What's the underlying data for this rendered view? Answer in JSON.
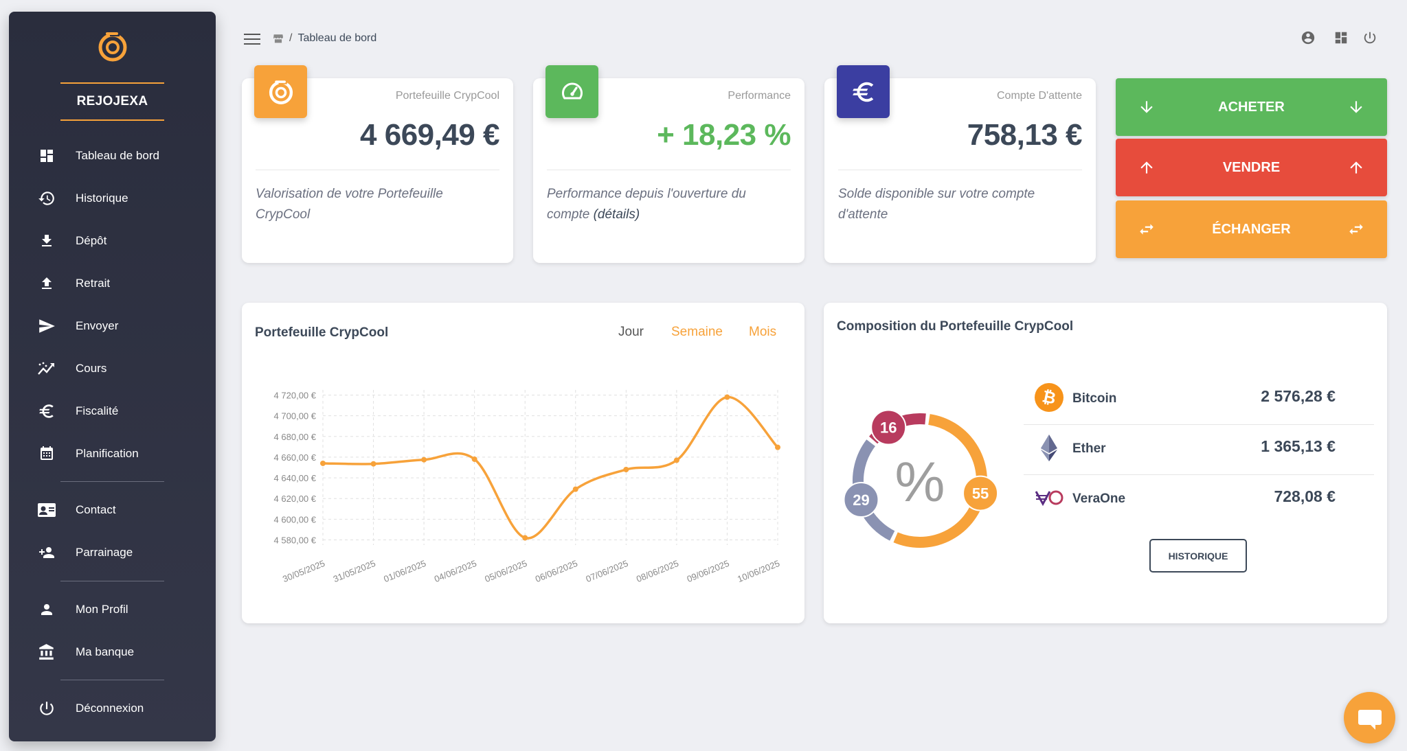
{
  "sidebar": {
    "brand": "REJOJEXA",
    "items": [
      {
        "label": "Tableau de bord",
        "icon": "dashboard-icon"
      },
      {
        "label": "Historique",
        "icon": "history-icon"
      },
      {
        "label": "Dépôt",
        "icon": "download-icon"
      },
      {
        "label": "Retrait",
        "icon": "upload-icon"
      },
      {
        "label": "Envoyer",
        "icon": "send-icon"
      },
      {
        "label": "Cours",
        "icon": "trending-icon"
      },
      {
        "label": "Fiscalité",
        "icon": "euro-icon"
      },
      {
        "label": "Planification",
        "icon": "calendar-icon"
      },
      {
        "label": "Contact",
        "icon": "contact-card-icon"
      },
      {
        "label": "Parrainage",
        "icon": "person-add-icon"
      },
      {
        "label": "Mon Profil",
        "icon": "person-icon"
      },
      {
        "label": "Ma banque",
        "icon": "bank-icon"
      },
      {
        "label": "Déconnexion",
        "icon": "power-icon"
      }
    ]
  },
  "topbar": {
    "breadcrumb": "Tableau de bord",
    "icons": [
      "account-circle-icon",
      "dashboard-icon",
      "power-icon"
    ]
  },
  "stats": [
    {
      "category": "Portefeuille CrypCool",
      "value": "4 669,49 €",
      "desc": "Valorisation de votre Portefeuille CrypCool",
      "color": "#f7a23a",
      "icon": "crypcool-logo-icon"
    },
    {
      "category": "Performance",
      "value": "+ 18,23 %",
      "desc_pre": "Performance depuis l'ouverture du compte ",
      "desc_link": "(détails)",
      "color": "#5cb85c",
      "icon": "speedometer-icon"
    },
    {
      "category": "Compte D'attente",
      "value": "758,13 €",
      "desc": "Solde disponible sur votre compte d'attente",
      "color": "#3b3ea1",
      "icon": "euro-icon"
    }
  ],
  "actions": [
    {
      "label": "ACHETER",
      "color": "#5cb85c"
    },
    {
      "label": "VENDRE",
      "color": "#e74c3c"
    },
    {
      "label": "ÉCHANGER",
      "color": "#f7a23a"
    }
  ],
  "chart_card": {
    "title": "Portefeuille CrypCool",
    "periods": [
      "Jour",
      "Semaine",
      "Mois"
    ]
  },
  "chart_data": {
    "type": "line",
    "x": [
      "30/05/2025",
      "31/05/2025",
      "01/06/2025",
      "04/06/2025",
      "05/06/2025",
      "06/06/2025",
      "07/06/2025",
      "08/06/2025",
      "09/06/2025",
      "10/06/2025"
    ],
    "series": [
      {
        "values": [
          4654,
          4653.5,
          4657.5,
          4658,
          4582,
          4629,
          4648,
          4657,
          4718,
          4669.5
        ]
      }
    ],
    "ylim": [
      4575,
      4725
    ],
    "yticks": [
      4580,
      4600,
      4620,
      4640,
      4660,
      4680,
      4700,
      4720
    ],
    "ytick_labels": [
      "4 580,00 €",
      "4 600,00 €",
      "4 620,00 €",
      "4 640,00 €",
      "4 660,00 €",
      "4 680,00 €",
      "4 700,00 €",
      "4 720,00 €"
    ],
    "color": "#f7a23a",
    "grid": true
  },
  "composition": {
    "title": "Composition du Portefeuille CrypCool",
    "center_symbol": "%",
    "segments": [
      {
        "value": 55,
        "label": "55",
        "color": "#f7a23a"
      },
      {
        "value": 29,
        "label": "29",
        "color": "#8a92b2"
      },
      {
        "value": 16,
        "label": "16",
        "color": "#b83b5e"
      }
    ],
    "assets": [
      {
        "name": "Bitcoin",
        "value": "2 576,28 €",
        "icon": "bitcoin-icon"
      },
      {
        "name": "Ether",
        "value": "1 365,13 €",
        "icon": "ethereum-icon"
      },
      {
        "name": "VeraOne",
        "value": "728,08 €",
        "icon": "veraone-icon"
      }
    ],
    "button": "HISTORIQUE"
  }
}
